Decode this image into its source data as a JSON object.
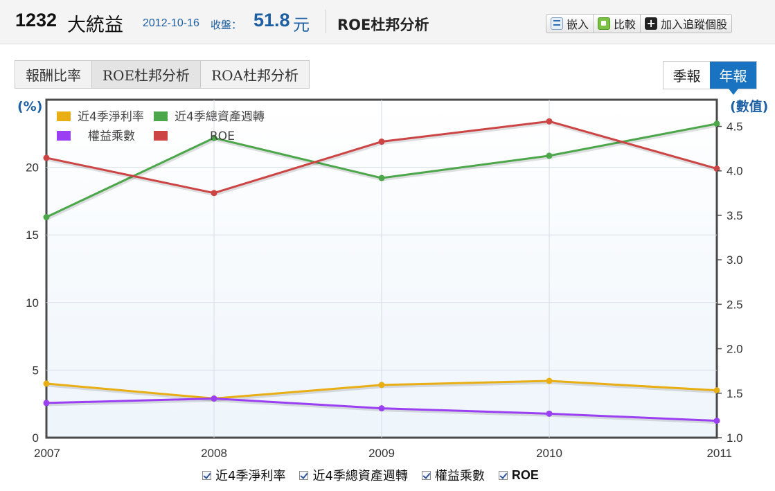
{
  "header": {
    "stock_code": "1232",
    "stock_name": "大統益",
    "close_date": "2012-10-16",
    "close_label": "收盤：",
    "close_price": "51.8",
    "close_unit": "元",
    "page_title": "ROE杜邦分析",
    "tools": {
      "embed": "嵌入",
      "compare": "比較",
      "track": "加入追蹤個股"
    }
  },
  "tabs": [
    {
      "label": "報酬比率",
      "active": false
    },
    {
      "label": "ROE杜邦分析",
      "active": true
    },
    {
      "label": "ROA杜邦分析",
      "active": false
    }
  ],
  "period": {
    "quarterly": "季報",
    "annual": "年報",
    "selected": "annual"
  },
  "chart_data": {
    "type": "line",
    "x": [
      "2007",
      "2008",
      "2009",
      "2010",
      "2011"
    ],
    "left_axis": {
      "unit": "(%)",
      "ylim": [
        0,
        25
      ],
      "ticks": [
        "0",
        "5",
        "10",
        "15",
        "20"
      ],
      "tick_values": [
        0,
        5,
        10,
        15,
        20
      ]
    },
    "right_axis": {
      "unit": "(數值)",
      "ylim": [
        1.0,
        4.8
      ],
      "ticks": [
        "1.0",
        "1.5",
        "2.0",
        "2.5",
        "3.0",
        "3.5",
        "4.0",
        "4.5"
      ],
      "tick_values": [
        1.0,
        1.5,
        2.0,
        2.5,
        3.0,
        3.5,
        4.0,
        4.5
      ]
    },
    "grid": true,
    "legend_position": "top-left",
    "series": [
      {
        "name": "近4季淨利率",
        "axis": "left",
        "color": "#e8ae14",
        "values": [
          4.0,
          2.9,
          3.9,
          4.2,
          3.5
        ]
      },
      {
        "name": "近4季總資產週轉",
        "axis": "right",
        "color": "#4ca64a",
        "values": [
          3.48,
          4.37,
          3.92,
          4.17,
          4.53
        ]
      },
      {
        "name": "權益乘數",
        "axis": "right",
        "color": "#9b3ff2",
        "values": [
          1.39,
          1.44,
          1.33,
          1.27,
          1.19
        ]
      },
      {
        "name": "ROE",
        "axis": "left",
        "color": "#cc4444",
        "values": [
          20.7,
          18.1,
          21.9,
          23.4,
          19.9
        ]
      }
    ]
  },
  "series_toggles": [
    {
      "label": "近4季淨利率",
      "checked": true
    },
    {
      "label": "近4季總資產週轉",
      "checked": true
    },
    {
      "label": "權益乘數",
      "checked": true
    },
    {
      "label": "ROE",
      "checked": true
    }
  ]
}
